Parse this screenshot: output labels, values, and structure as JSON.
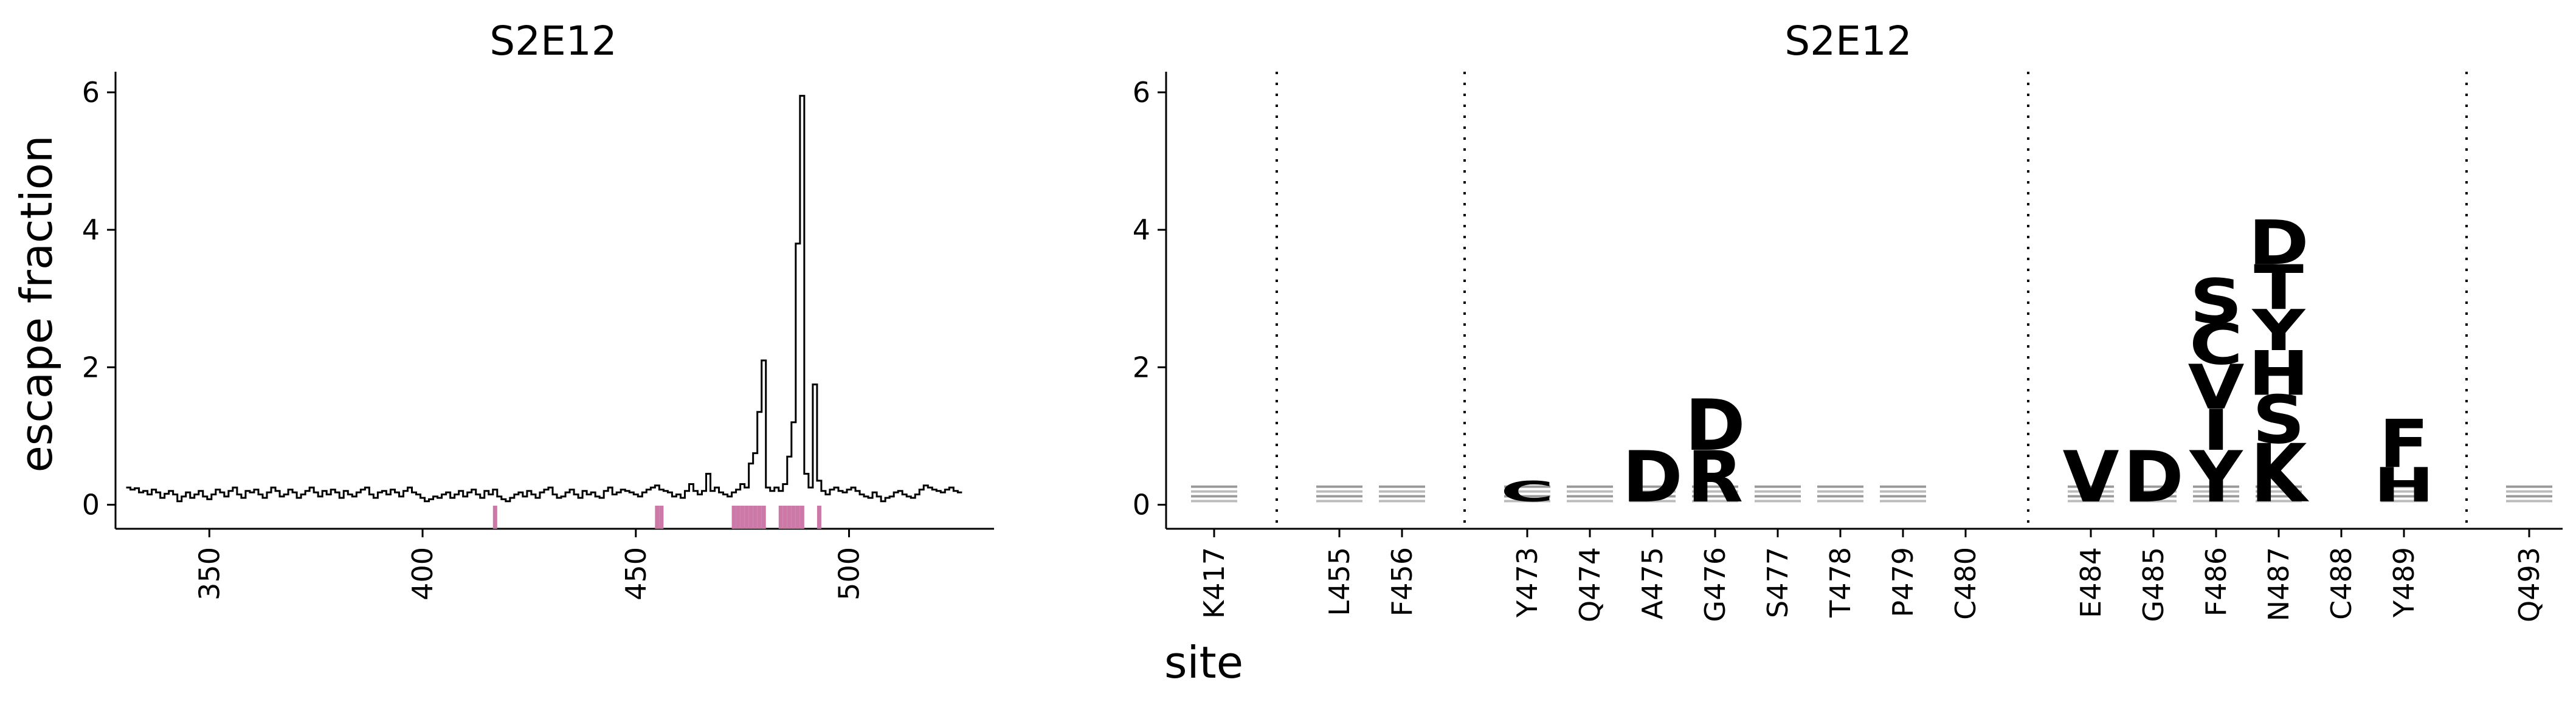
{
  "figure": {
    "left_title": "S2E12",
    "right_title": "S2E12",
    "ylabel": "escape fraction",
    "xlabel_right": "site"
  },
  "chart_data": [
    {
      "type": "line",
      "title": "S2E12",
      "xlabel": "",
      "ylabel": "escape fraction",
      "xlim": [
        328,
        534
      ],
      "ylim": [
        -0.35,
        6.3
      ],
      "xticks": [
        350,
        400,
        450,
        500
      ],
      "yticks": [
        0,
        2,
        4,
        6
      ],
      "grid": false,
      "line_style": "steps",
      "line_color": "#000000",
      "x_start": 331,
      "y": [
        0.25,
        0.22,
        0.24,
        0.18,
        0.2,
        0.15,
        0.22,
        0.18,
        0.1,
        0.16,
        0.2,
        0.15,
        0.05,
        0.12,
        0.18,
        0.1,
        0.15,
        0.2,
        0.12,
        0.08,
        0.15,
        0.22,
        0.18,
        0.12,
        0.2,
        0.25,
        0.15,
        0.1,
        0.2,
        0.18,
        0.22,
        0.15,
        0.1,
        0.18,
        0.25,
        0.2,
        0.12,
        0.15,
        0.22,
        0.18,
        0.1,
        0.15,
        0.2,
        0.25,
        0.18,
        0.12,
        0.2,
        0.15,
        0.22,
        0.18,
        0.1,
        0.2,
        0.15,
        0.12,
        0.18,
        0.22,
        0.25,
        0.15,
        0.1,
        0.18,
        0.2,
        0.15,
        0.22,
        0.18,
        0.12,
        0.2,
        0.25,
        0.18,
        0.15,
        0.1,
        0.05,
        0.08,
        0.12,
        0.1,
        0.15,
        0.18,
        0.1,
        0.15,
        0.2,
        0.12,
        0.18,
        0.22,
        0.15,
        0.1,
        0.2,
        0.15,
        0.22,
        0.12,
        0.08,
        0.05,
        0.1,
        0.15,
        0.18,
        0.12,
        0.2,
        0.15,
        0.1,
        0.18,
        0.22,
        0.25,
        0.15,
        0.1,
        0.12,
        0.18,
        0.22,
        0.15,
        0.1,
        0.2,
        0.15,
        0.18,
        0.12,
        0.1,
        0.2,
        0.25,
        0.15,
        0.18,
        0.22,
        0.2,
        0.18,
        0.15,
        0.12,
        0.18,
        0.22,
        0.25,
        0.28,
        0.22,
        0.2,
        0.18,
        0.12,
        0.15,
        0.1,
        0.2,
        0.3,
        0.2,
        0.15,
        0.2,
        0.45,
        0.2,
        0.25,
        0.18,
        0.15,
        0.12,
        0.18,
        0.22,
        0.3,
        0.25,
        0.6,
        0.75,
        1.35,
        2.1,
        0.25,
        0.2,
        0.25,
        0.2,
        0.3,
        0.7,
        1.2,
        3.8,
        5.95,
        0.45,
        0.25,
        1.75,
        0.35,
        0.2,
        0.15,
        0.22,
        0.25,
        0.2,
        0.18,
        0.22,
        0.25,
        0.2,
        0.15,
        0.12,
        0.1,
        0.18,
        0.12,
        0.05,
        0.1,
        0.12,
        0.18,
        0.2,
        0.15,
        0.12,
        0.1,
        0.15,
        0.22,
        0.28,
        0.25,
        0.22,
        0.2,
        0.18,
        0.22,
        0.25,
        0.2,
        0.18
      ],
      "highlight_sites": [
        417,
        455,
        456,
        473,
        474,
        475,
        476,
        477,
        478,
        479,
        480,
        484,
        485,
        486,
        487,
        488,
        489,
        493
      ],
      "highlight_color": "#cc79a7"
    },
    {
      "type": "sequence-logo",
      "title": "S2E12",
      "xlabel": "site",
      "ylabel": "",
      "ylim": [
        -0.35,
        6.3
      ],
      "yticks": [
        0,
        2,
        4,
        6
      ],
      "grid": false,
      "sites": [
        "K417",
        "L455",
        "F456",
        "Y473",
        "Q474",
        "A475",
        "G476",
        "S477",
        "T478",
        "P479",
        "C480",
        "E484",
        "G485",
        "F486",
        "N487",
        "C488",
        "Y489",
        "Q493"
      ],
      "site_groups": [
        [
          "K417"
        ],
        [
          "L455",
          "F456"
        ],
        [
          "Y473",
          "Q474",
          "A475",
          "G476",
          "S477",
          "T478",
          "P479",
          "C480"
        ],
        [
          "E484",
          "G485",
          "F486",
          "N487",
          "C488",
          "Y489"
        ],
        [
          "Q493"
        ]
      ],
      "letters": [
        {
          "site": "F486",
          "letter": "Y",
          "value": 0.75
        },
        {
          "site": "F486",
          "letter": "I",
          "value": 0.6
        },
        {
          "site": "F486",
          "letter": "V",
          "value": 0.65
        },
        {
          "site": "F486",
          "letter": "C",
          "value": 0.6
        },
        {
          "site": "F486",
          "letter": "S",
          "value": 0.65
        },
        {
          "site": "N487",
          "letter": "K",
          "value": 0.85
        },
        {
          "site": "N487",
          "letter": "S",
          "value": 0.7
        },
        {
          "site": "N487",
          "letter": "H",
          "value": 0.65
        },
        {
          "site": "N487",
          "letter": "Y",
          "value": 0.6
        },
        {
          "site": "N487",
          "letter": "T",
          "value": 0.65
        },
        {
          "site": "N487",
          "letter": "D",
          "value": 0.65
        },
        {
          "site": "Y489",
          "letter": "H",
          "value": 0.5
        },
        {
          "site": "Y489",
          "letter": "F",
          "value": 0.7
        },
        {
          "site": "G476",
          "letter": "R",
          "value": 0.75
        },
        {
          "site": "G476",
          "letter": "D",
          "value": 0.75
        },
        {
          "site": "A475",
          "letter": "D",
          "value": 0.75
        },
        {
          "site": "E484",
          "letter": "V",
          "value": 0.75
        },
        {
          "site": "G485",
          "letter": "D",
          "value": 0.75
        },
        {
          "site": "Y473",
          "letter": "C",
          "value": 0.3
        }
      ],
      "small_letter_color": "#aaaaaa"
    }
  ]
}
